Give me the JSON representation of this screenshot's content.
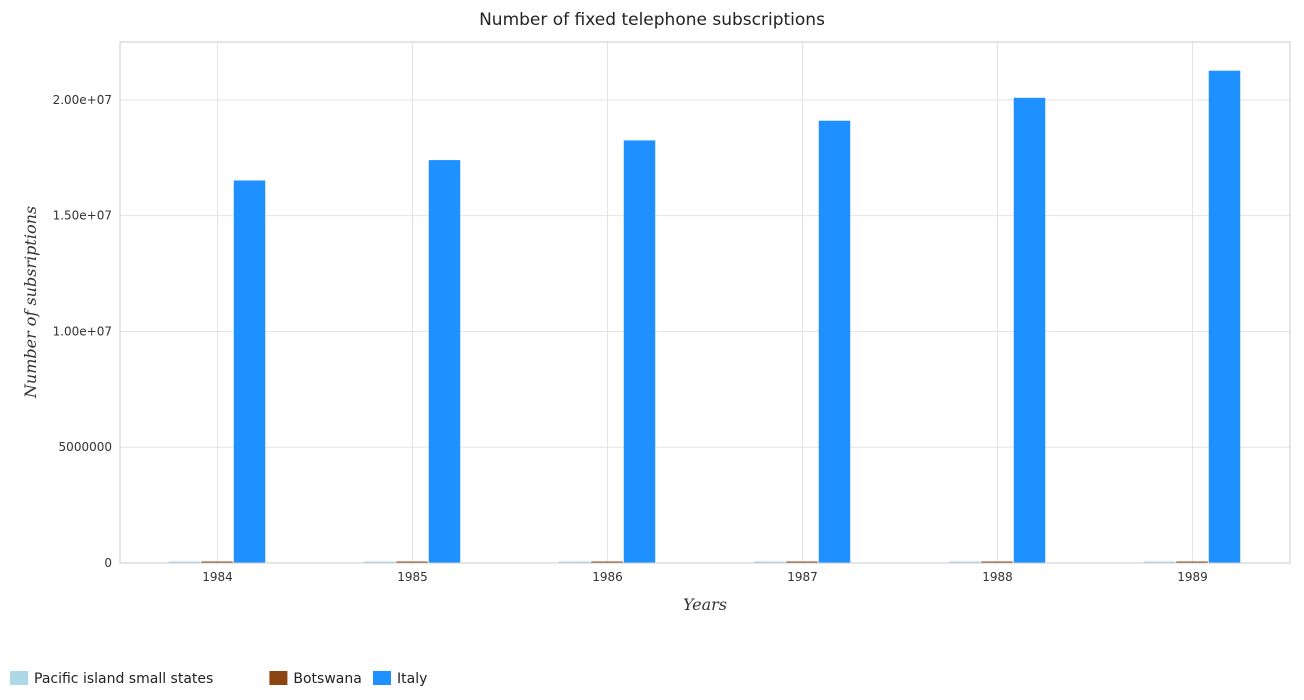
{
  "chart_data": {
    "type": "bar",
    "title": "Number of fixed telephone subscriptions",
    "xlabel": "Years",
    "ylabel": "Number of subsriptions",
    "categories": [
      "1984",
      "1985",
      "1986",
      "1987",
      "1988",
      "1989"
    ],
    "ylim": [
      0,
      22500000
    ],
    "yticks": [
      0,
      5000000,
      10000000,
      15000000,
      20000000
    ],
    "ytick_labels": [
      "0",
      "5000000",
      "1.00e+07",
      "1.50e+07",
      "2.00e+07"
    ],
    "grid": true,
    "legend_position": "bottom-left",
    "series": [
      {
        "name": "Pacific island small states",
        "color": "#add8e6",
        "values": [
          42000,
          44000,
          47000,
          49000,
          53000,
          58000
        ]
      },
      {
        "name": "Botswana",
        "color": "#8b4513",
        "values": [
          11500,
          12500,
          13500,
          15000,
          17000,
          20000
        ]
      },
      {
        "name": "Italy",
        "color": "#1e90ff",
        "values": [
          16520000,
          17400000,
          18250000,
          19100000,
          20090000,
          21260000
        ]
      }
    ]
  }
}
